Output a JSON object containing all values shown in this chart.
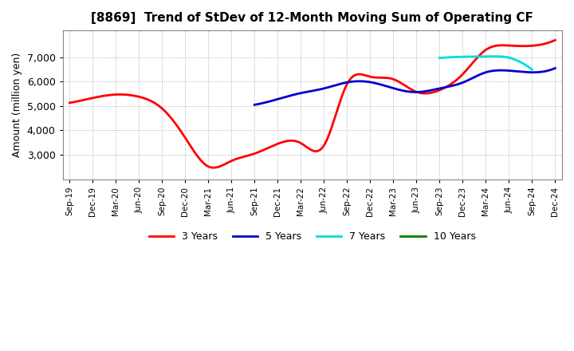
{
  "title": "[8869]  Trend of StDev of 12-Month Moving Sum of Operating CF",
  "ylabel": "Amount (million yen)",
  "background_color": "#ffffff",
  "grid_color": "#aaaaaa",
  "x_labels": [
    "Sep-19",
    "Dec-19",
    "Mar-20",
    "Jun-20",
    "Sep-20",
    "Dec-20",
    "Mar-21",
    "Jun-21",
    "Sep-21",
    "Dec-21",
    "Mar-22",
    "Jun-22",
    "Sep-22",
    "Dec-22",
    "Mar-23",
    "Jun-23",
    "Sep-23",
    "Dec-23",
    "Mar-24",
    "Jun-24",
    "Sep-24",
    "Dec-24"
  ],
  "series_3yr": {
    "color": "#ff0000",
    "linewidth": 2.0,
    "x": [
      0,
      1,
      2,
      3,
      4,
      5,
      6,
      7,
      8,
      9,
      10,
      11,
      12,
      13,
      14,
      15,
      16,
      17,
      18,
      19,
      20,
      21
    ],
    "y": [
      5130,
      5330,
      5470,
      5380,
      4900,
      3700,
      2520,
      2750,
      3050,
      3450,
      3480,
      3380,
      5900,
      6200,
      6100,
      5580,
      5650,
      6300,
      7300,
      7480,
      7470,
      7700
    ]
  },
  "series_5yr": {
    "color": "#0000cc",
    "linewidth": 2.0,
    "x": [
      8,
      9,
      10,
      11,
      12,
      13,
      14,
      15,
      16,
      17,
      18,
      19,
      20,
      21
    ],
    "y": [
      5050,
      5280,
      5530,
      5720,
      5970,
      5980,
      5730,
      5570,
      5720,
      5960,
      6380,
      6450,
      6380,
      6550
    ]
  },
  "series_7yr": {
    "color": "#00dddd",
    "linewidth": 2.0,
    "x": [
      16,
      17,
      18,
      19,
      20
    ],
    "y": [
      6970,
      7020,
      7030,
      6980,
      6500
    ]
  },
  "series_10yr": {
    "color": "#008000",
    "linewidth": 2.0,
    "x": [],
    "y": []
  },
  "ylim": [
    2000,
    8100
  ],
  "yticks": [
    3000,
    4000,
    5000,
    6000,
    7000
  ],
  "legend_entries": [
    "3 Years",
    "5 Years",
    "7 Years",
    "10 Years"
  ],
  "legend_colors": [
    "#ff0000",
    "#0000cc",
    "#00dddd",
    "#008000"
  ]
}
